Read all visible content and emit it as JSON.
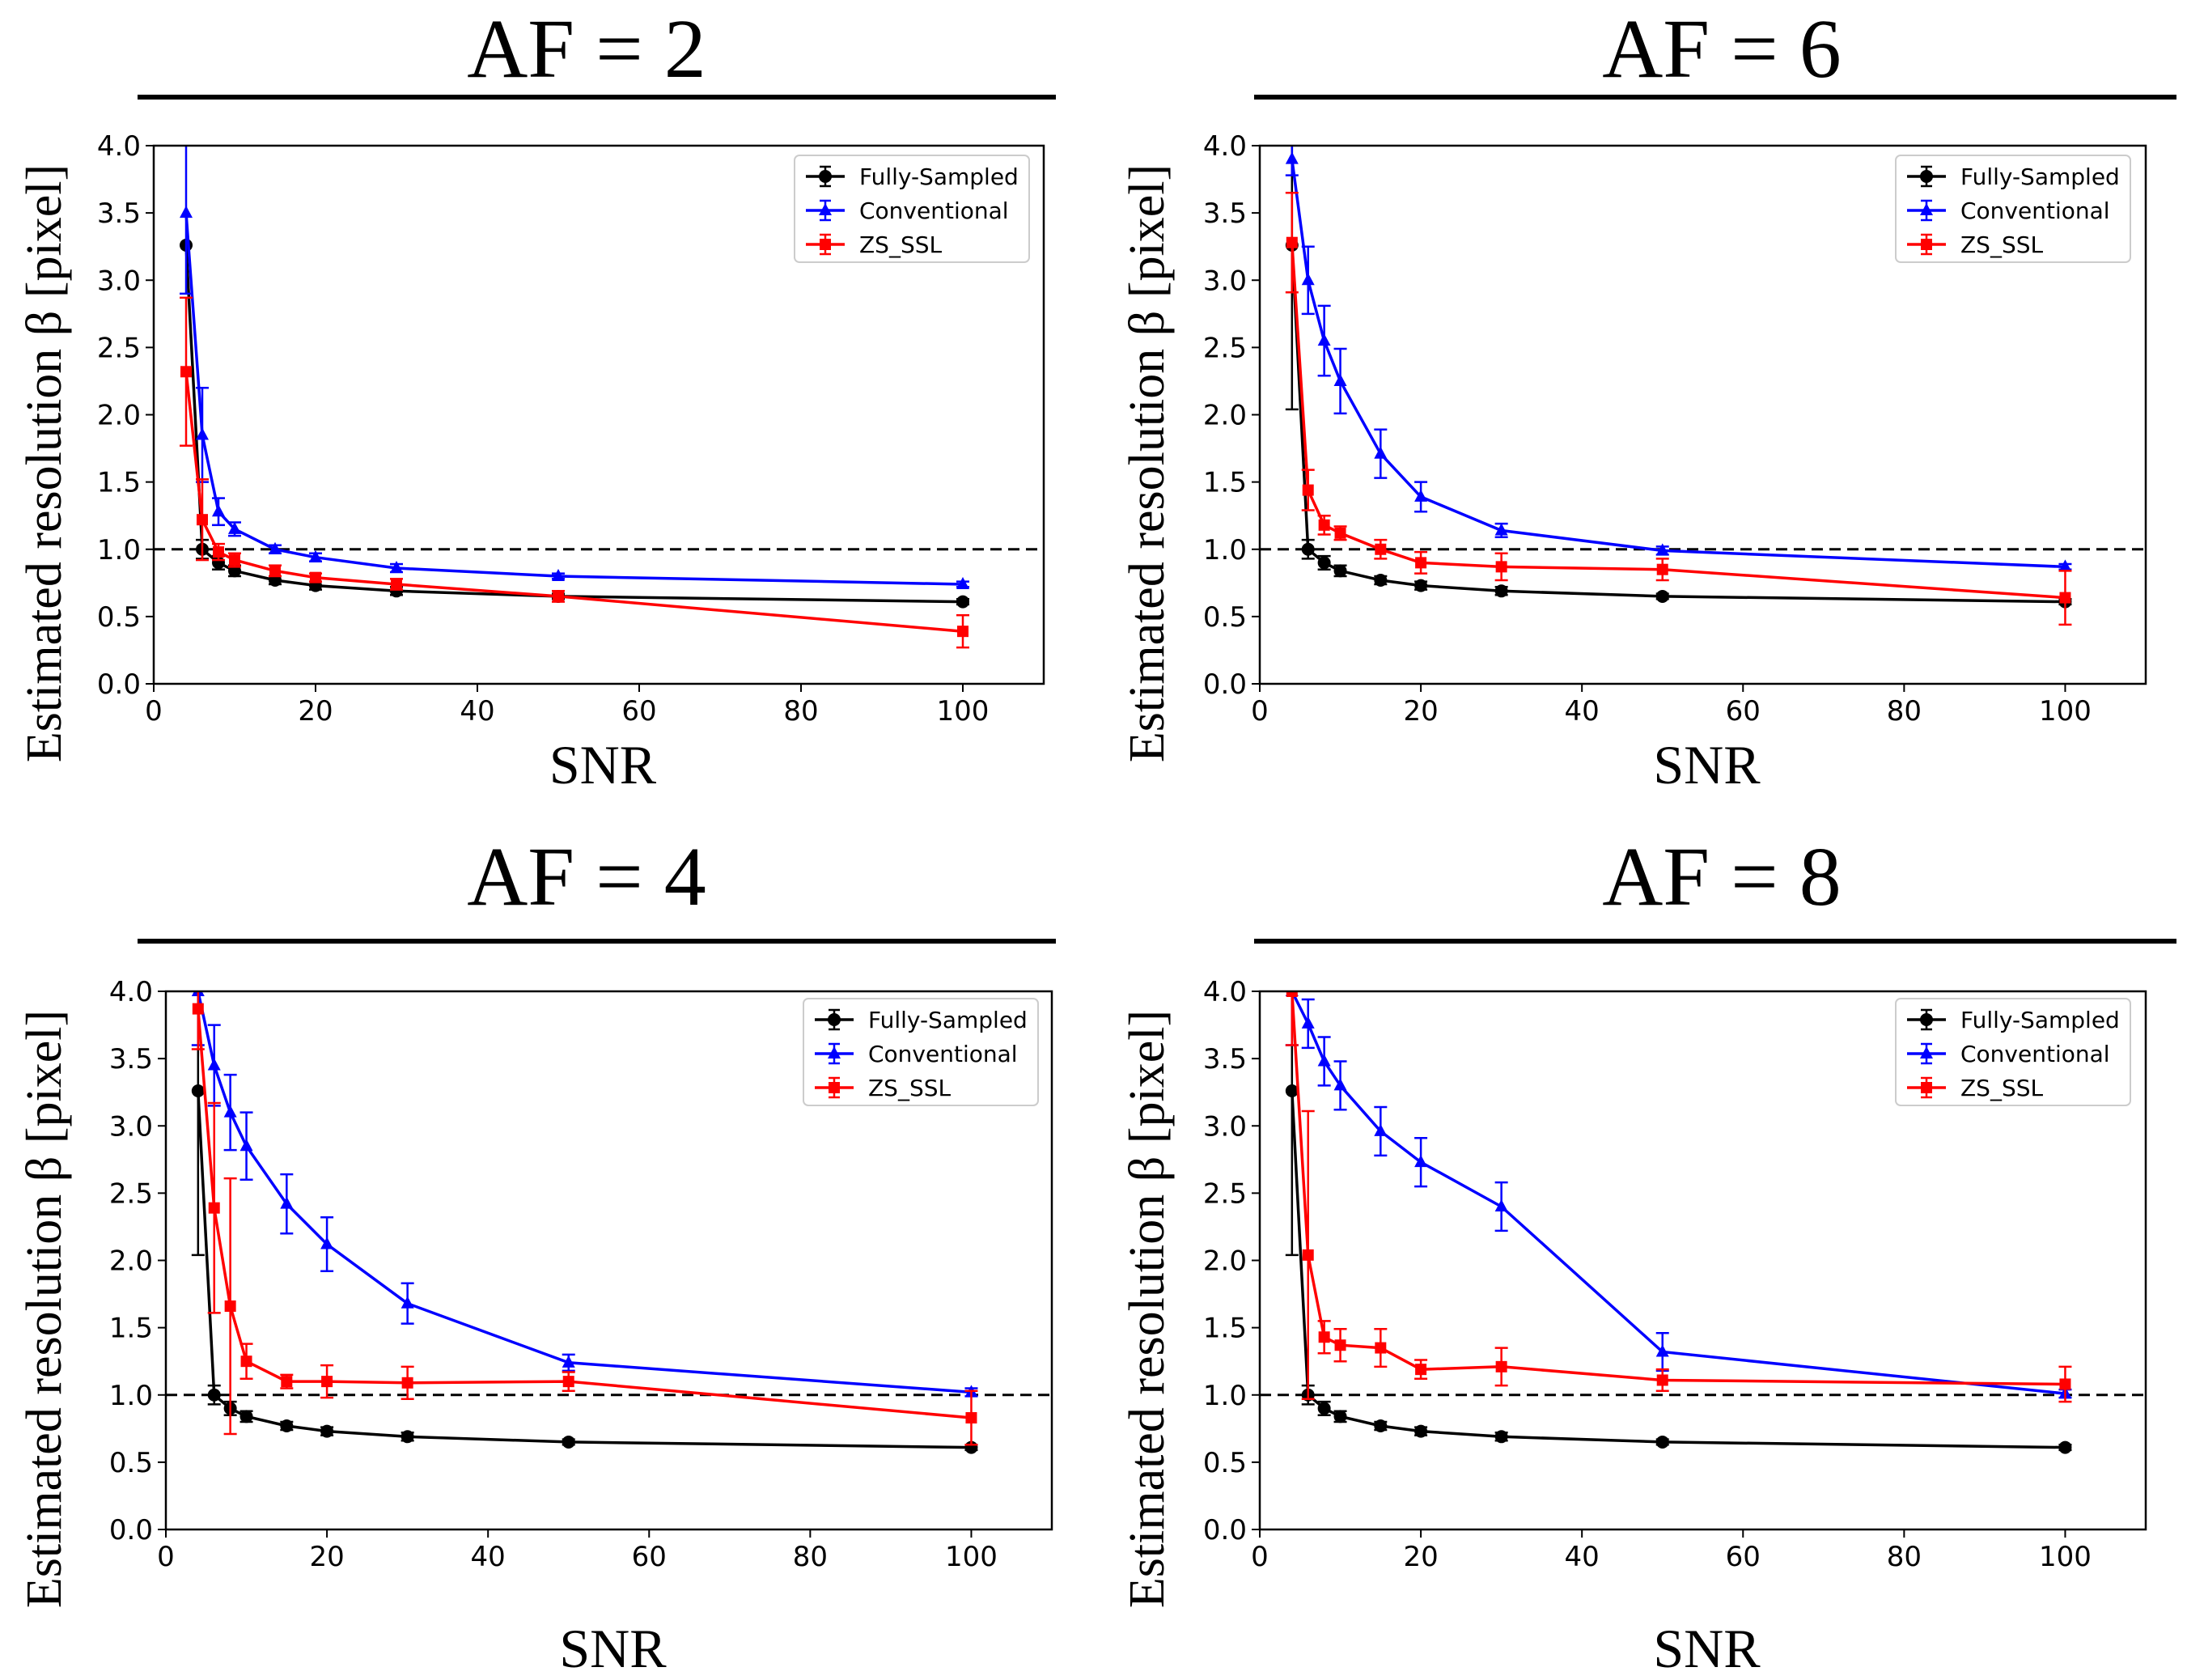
{
  "chart_data": [
    {
      "type": "line",
      "title": "AF = 2",
      "xlabel": "SNR",
      "ylabel": "Estimated resolution β [pixel]",
      "xlim": [
        0,
        110
      ],
      "ylim": [
        0,
        4.0
      ],
      "xticks": [
        0,
        20,
        40,
        60,
        80,
        100
      ],
      "yticks": [
        0.0,
        0.5,
        1.0,
        1.5,
        2.0,
        2.5,
        3.0,
        3.5,
        4.0
      ],
      "xtick_labels": [
        "0",
        "20",
        "40",
        "60",
        "80",
        "100"
      ],
      "ytick_labels": [
        "0.0",
        "0.5",
        "1.0",
        "1.5",
        "2.0",
        "2.5",
        "3.0",
        "3.5",
        "4.0"
      ],
      "reference_line": 1.0,
      "legend_position": "top-right",
      "series": [
        {
          "name": "Fully-Sampled",
          "color": "#000000",
          "marker": "circle",
          "x": [
            4,
            6,
            8,
            10,
            15,
            20,
            30,
            50,
            100
          ],
          "y": [
            3.26,
            1.0,
            0.9,
            0.84,
            0.77,
            0.73,
            0.69,
            0.65,
            0.61
          ],
          "err": [
            0.0,
            0.07,
            0.05,
            0.04,
            0.03,
            0.03,
            0.03,
            0.02,
            0.02
          ]
        },
        {
          "name": "Conventional",
          "color": "#0000ff",
          "marker": "triangle",
          "x": [
            4,
            6,
            8,
            10,
            15,
            20,
            30,
            50,
            100
          ],
          "y": [
            3.5,
            1.85,
            1.28,
            1.15,
            1.0,
            0.94,
            0.86,
            0.8,
            0.74
          ],
          "err": [
            0.6,
            0.35,
            0.1,
            0.05,
            0.03,
            0.03,
            0.03,
            0.02,
            0.02
          ]
        },
        {
          "name": "ZS_SSL",
          "color": "#ff0000",
          "marker": "square",
          "x": [
            4,
            6,
            8,
            10,
            15,
            20,
            30,
            50,
            100
          ],
          "y": [
            2.32,
            1.22,
            0.98,
            0.92,
            0.84,
            0.79,
            0.74,
            0.65,
            0.39
          ],
          "err": [
            0.55,
            0.3,
            0.06,
            0.05,
            0.04,
            0.03,
            0.04,
            0.04,
            0.12
          ]
        }
      ]
    },
    {
      "type": "line",
      "title": "AF = 6",
      "xlabel": "SNR",
      "ylabel": "Estimated resolution β [pixel]",
      "xlim": [
        0,
        110
      ],
      "ylim": [
        0,
        4.0
      ],
      "xticks": [
        0,
        20,
        40,
        60,
        80,
        100
      ],
      "yticks": [
        0.0,
        0.5,
        1.0,
        1.5,
        2.0,
        2.5,
        3.0,
        3.5,
        4.0
      ],
      "xtick_labels": [
        "0",
        "20",
        "40",
        "60",
        "80",
        "100"
      ],
      "ytick_labels": [
        "0.0",
        "0.5",
        "1.0",
        "1.5",
        "2.0",
        "2.5",
        "3.0",
        "3.5",
        "4.0"
      ],
      "reference_line": 1.0,
      "legend_position": "top-right",
      "series": [
        {
          "name": "Fully-Sampled",
          "color": "#000000",
          "marker": "circle",
          "x": [
            4,
            6,
            8,
            10,
            15,
            20,
            30,
            50,
            100
          ],
          "y": [
            3.26,
            1.0,
            0.9,
            0.84,
            0.77,
            0.73,
            0.69,
            0.65,
            0.61
          ],
          "err": [
            1.22,
            0.07,
            0.05,
            0.04,
            0.03,
            0.03,
            0.03,
            0.02,
            0.02
          ]
        },
        {
          "name": "Conventional",
          "color": "#0000ff",
          "marker": "triangle",
          "x": [
            4,
            6,
            8,
            10,
            15,
            20,
            30,
            50,
            100
          ],
          "y": [
            3.9,
            3.0,
            2.55,
            2.25,
            1.71,
            1.39,
            1.14,
            0.99,
            0.87
          ],
          "err": [
            0.12,
            0.25,
            0.26,
            0.24,
            0.18,
            0.11,
            0.05,
            0.03,
            0.02
          ]
        },
        {
          "name": "ZS_SSL",
          "color": "#ff0000",
          "marker": "square",
          "x": [
            4,
            6,
            8,
            10,
            15,
            20,
            30,
            50,
            100
          ],
          "y": [
            3.28,
            1.44,
            1.18,
            1.12,
            1.0,
            0.9,
            0.87,
            0.85,
            0.64
          ],
          "err": [
            0.37,
            0.15,
            0.07,
            0.05,
            0.07,
            0.08,
            0.1,
            0.08,
            0.2
          ]
        }
      ]
    },
    {
      "type": "line",
      "title": "AF = 4",
      "xlabel": "SNR",
      "ylabel": "Estimated resolution β [pixel]",
      "xlim": [
        0,
        110
      ],
      "ylim": [
        0,
        4.0
      ],
      "xticks": [
        0,
        20,
        40,
        60,
        80,
        100
      ],
      "yticks": [
        0.0,
        0.5,
        1.0,
        1.5,
        2.0,
        2.5,
        3.0,
        3.5,
        4.0
      ],
      "xtick_labels": [
        "0",
        "20",
        "40",
        "60",
        "80",
        "100"
      ],
      "ytick_labels": [
        "0.0",
        "0.5",
        "1.0",
        "1.5",
        "2.0",
        "2.5",
        "3.0",
        "3.5",
        "4.0"
      ],
      "reference_line": 1.0,
      "legend_position": "top-right",
      "series": [
        {
          "name": "Fully-Sampled",
          "color": "#000000",
          "marker": "circle",
          "x": [
            4,
            6,
            8,
            10,
            15,
            20,
            30,
            50,
            100
          ],
          "y": [
            3.26,
            1.0,
            0.9,
            0.84,
            0.77,
            0.73,
            0.69,
            0.65,
            0.61
          ],
          "err": [
            1.22,
            0.07,
            0.05,
            0.04,
            0.03,
            0.03,
            0.03,
            0.02,
            0.02
          ]
        },
        {
          "name": "Conventional",
          "color": "#0000ff",
          "marker": "triangle",
          "x": [
            4,
            6,
            8,
            10,
            15,
            20,
            30,
            50,
            100
          ],
          "y": [
            4.0,
            3.45,
            3.1,
            2.85,
            2.42,
            2.12,
            1.68,
            1.24,
            1.02
          ],
          "err": [
            0.4,
            0.3,
            0.28,
            0.25,
            0.22,
            0.2,
            0.15,
            0.06,
            0.03
          ]
        },
        {
          "name": "ZS_SSL",
          "color": "#ff0000",
          "marker": "square",
          "x": [
            4,
            6,
            8,
            10,
            15,
            20,
            30,
            50,
            100
          ],
          "y": [
            3.87,
            2.39,
            1.66,
            1.25,
            1.1,
            1.1,
            1.09,
            1.1,
            0.83
          ],
          "err": [
            0.3,
            0.78,
            0.95,
            0.13,
            0.05,
            0.12,
            0.12,
            0.07,
            0.2
          ]
        }
      ]
    },
    {
      "type": "line",
      "title": "AF = 8",
      "xlabel": "SNR",
      "ylabel": "Estimated resolution β [pixel]",
      "xlim": [
        0,
        110
      ],
      "ylim": [
        0,
        4.0
      ],
      "xticks": [
        0,
        20,
        40,
        60,
        80,
        100
      ],
      "yticks": [
        0.0,
        0.5,
        1.0,
        1.5,
        2.0,
        2.5,
        3.0,
        3.5,
        4.0
      ],
      "xtick_labels": [
        "0",
        "20",
        "40",
        "60",
        "80",
        "100"
      ],
      "ytick_labels": [
        "0.0",
        "0.5",
        "1.0",
        "1.5",
        "2.0",
        "2.5",
        "3.0",
        "3.5",
        "4.0"
      ],
      "reference_line": 1.0,
      "legend_position": "top-right",
      "series": [
        {
          "name": "Fully-Sampled",
          "color": "#000000",
          "marker": "circle",
          "x": [
            4,
            6,
            8,
            10,
            15,
            20,
            30,
            50,
            100
          ],
          "y": [
            3.26,
            1.0,
            0.9,
            0.84,
            0.77,
            0.73,
            0.69,
            0.65,
            0.61
          ],
          "err": [
            1.22,
            0.07,
            0.05,
            0.04,
            0.03,
            0.03,
            0.03,
            0.02,
            0.02
          ]
        },
        {
          "name": "Conventional",
          "color": "#0000ff",
          "marker": "triangle",
          "x": [
            4,
            6,
            8,
            10,
            15,
            20,
            30,
            50,
            100
          ],
          "y": [
            4.0,
            3.76,
            3.48,
            3.3,
            2.96,
            2.73,
            2.4,
            1.32,
            1.01
          ],
          "err": [
            0.4,
            0.18,
            0.18,
            0.18,
            0.18,
            0.18,
            0.18,
            0.14,
            0.03
          ]
        },
        {
          "name": "ZS_SSL",
          "color": "#ff0000",
          "marker": "square",
          "x": [
            4,
            6,
            8,
            10,
            15,
            20,
            30,
            50,
            100
          ],
          "y": [
            4.0,
            2.04,
            1.43,
            1.37,
            1.35,
            1.19,
            1.21,
            1.11,
            1.08
          ],
          "err": [
            0.4,
            1.07,
            0.12,
            0.12,
            0.14,
            0.07,
            0.14,
            0.08,
            0.13
          ]
        }
      ]
    }
  ]
}
